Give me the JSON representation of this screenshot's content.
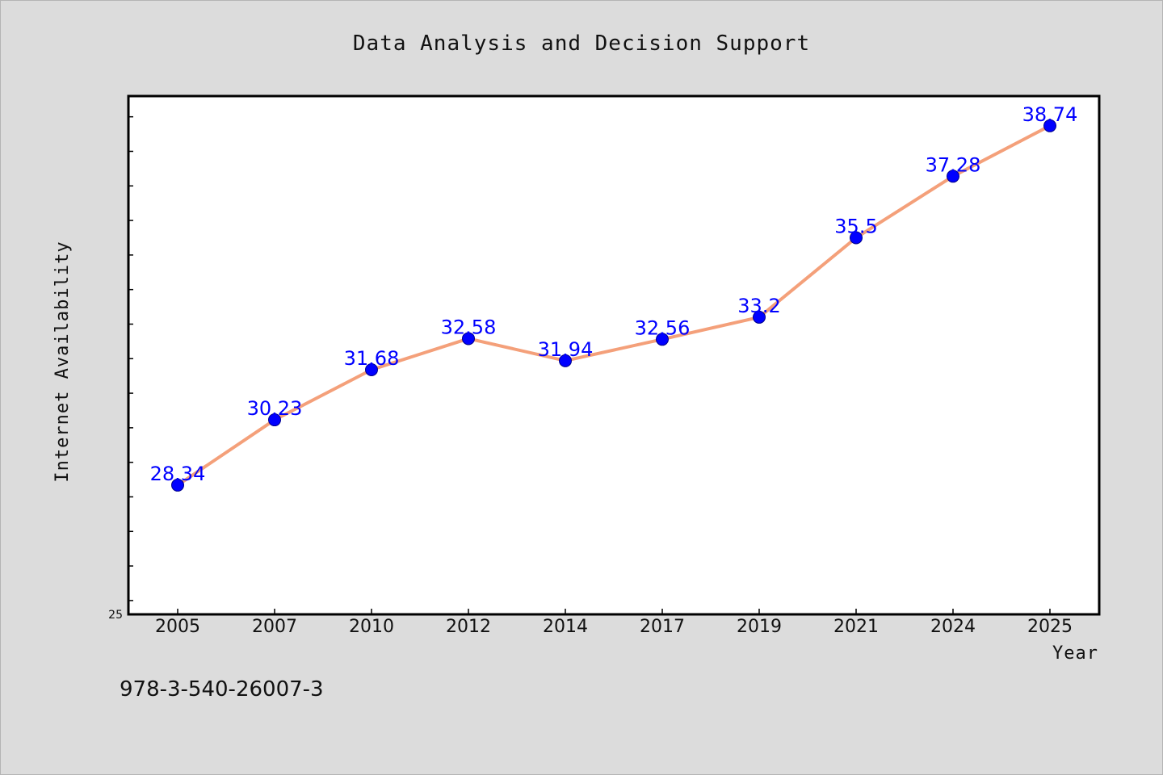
{
  "chart_data": {
    "type": "line",
    "title": "Data Analysis and Decision Support",
    "xlabel": "Year",
    "ylabel": "Internet Availability",
    "categories": [
      "2005",
      "2007",
      "2010",
      "2012",
      "2014",
      "2017",
      "2019",
      "2021",
      "2024",
      "2025"
    ],
    "series": [
      {
        "values": [
          28.34,
          30.23,
          31.68,
          32.58,
          31.94,
          32.56,
          33.2,
          35.5,
          37.28,
          38.74
        ]
      }
    ],
    "data_labels": [
      "28.34",
      "30.23",
      "31.68",
      "32.58",
      "31.94",
      "32.56",
      "33.2",
      "35.5",
      "37.28",
      "38.74"
    ],
    "ylim": [
      24.6,
      39.6
    ],
    "yticks_labeled": [
      "25"
    ],
    "grid": false,
    "line_color": "#f4a07a",
    "marker_color": "#0000ff",
    "label_color": "#0000ff",
    "plot_background": "#ffffff",
    "figure_background": "#dcdcdc"
  },
  "footnote": "978-3-540-26007-3"
}
